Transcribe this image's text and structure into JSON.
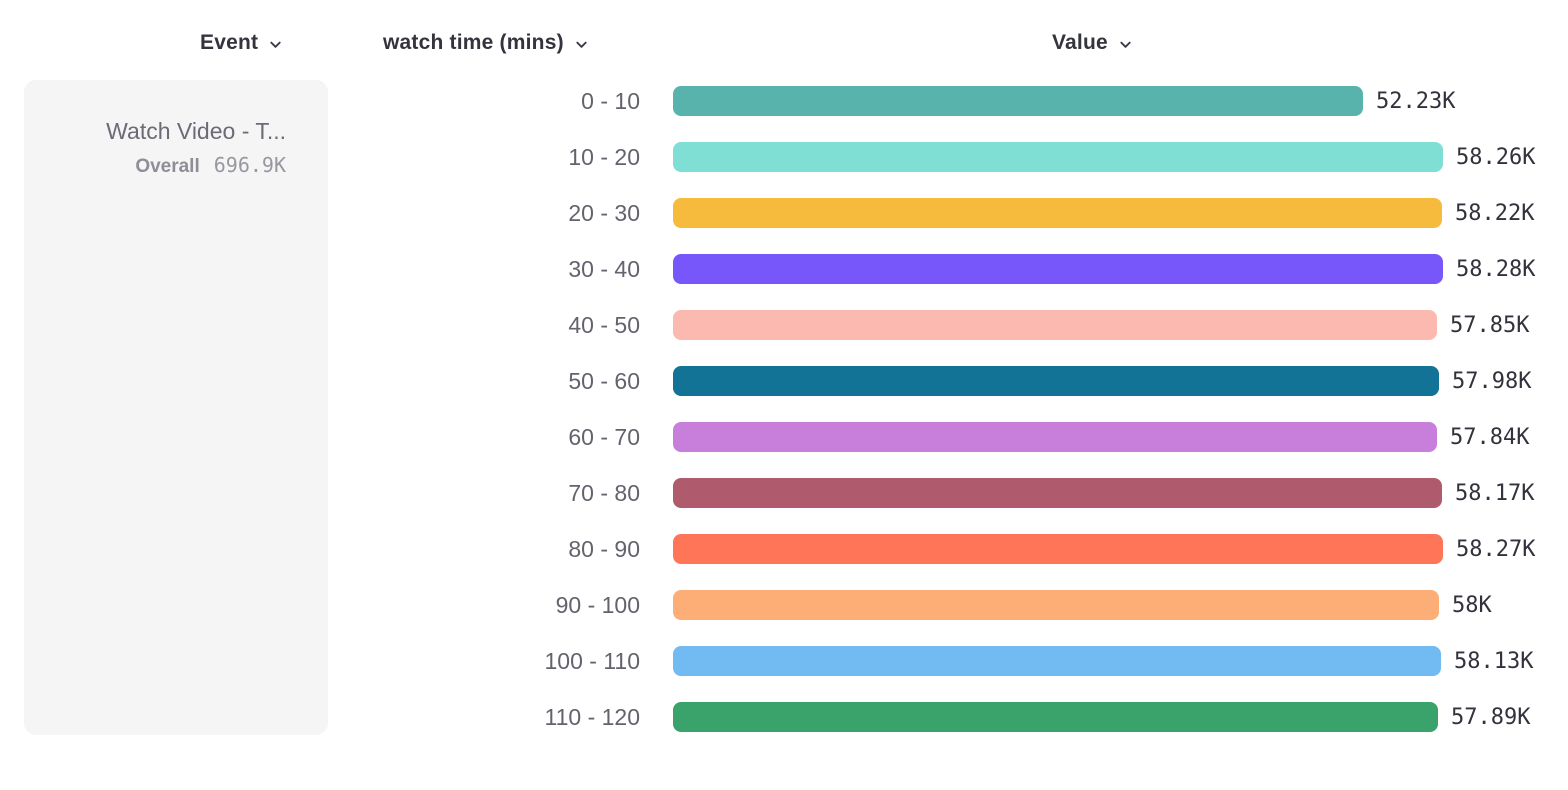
{
  "columns": {
    "event": {
      "label": "Event"
    },
    "breakdown": {
      "label": "watch time (mins)"
    },
    "value": {
      "label": "Value"
    }
  },
  "event_card": {
    "title": "Watch Video - T...",
    "overall_label": "Overall",
    "overall_value": "696.9K"
  },
  "chart_data": {
    "type": "bar",
    "orientation": "horizontal",
    "title": "",
    "xlabel": "Value",
    "ylabel": "watch time (mins)",
    "xlim": [
      0,
      58280
    ],
    "grid": false,
    "categories": [
      "0 - 10",
      "10 - 20",
      "20 - 30",
      "30 - 40",
      "40 - 50",
      "50 - 60",
      "60 - 70",
      "70 - 80",
      "80 - 90",
      "90 - 100",
      "100 - 110",
      "110 - 120"
    ],
    "values": [
      52230,
      58260,
      58220,
      58280,
      57850,
      57980,
      57840,
      58170,
      58270,
      58000,
      58130,
      57890
    ],
    "value_labels": [
      "52.23K",
      "58.26K",
      "58.22K",
      "58.28K",
      "57.85K",
      "57.98K",
      "57.84K",
      "58.17K",
      "58.27K",
      "58K",
      "58.13K",
      "57.89K"
    ],
    "colors": [
      "#57b3ac",
      "#7fdfd4",
      "#f6bb3d",
      "#7857fa",
      "#fcb9af",
      "#127397",
      "#c77fdb",
      "#b05a6e",
      "#fe7557",
      "#fcae76",
      "#72bbf2",
      "#3aa26b"
    ]
  }
}
